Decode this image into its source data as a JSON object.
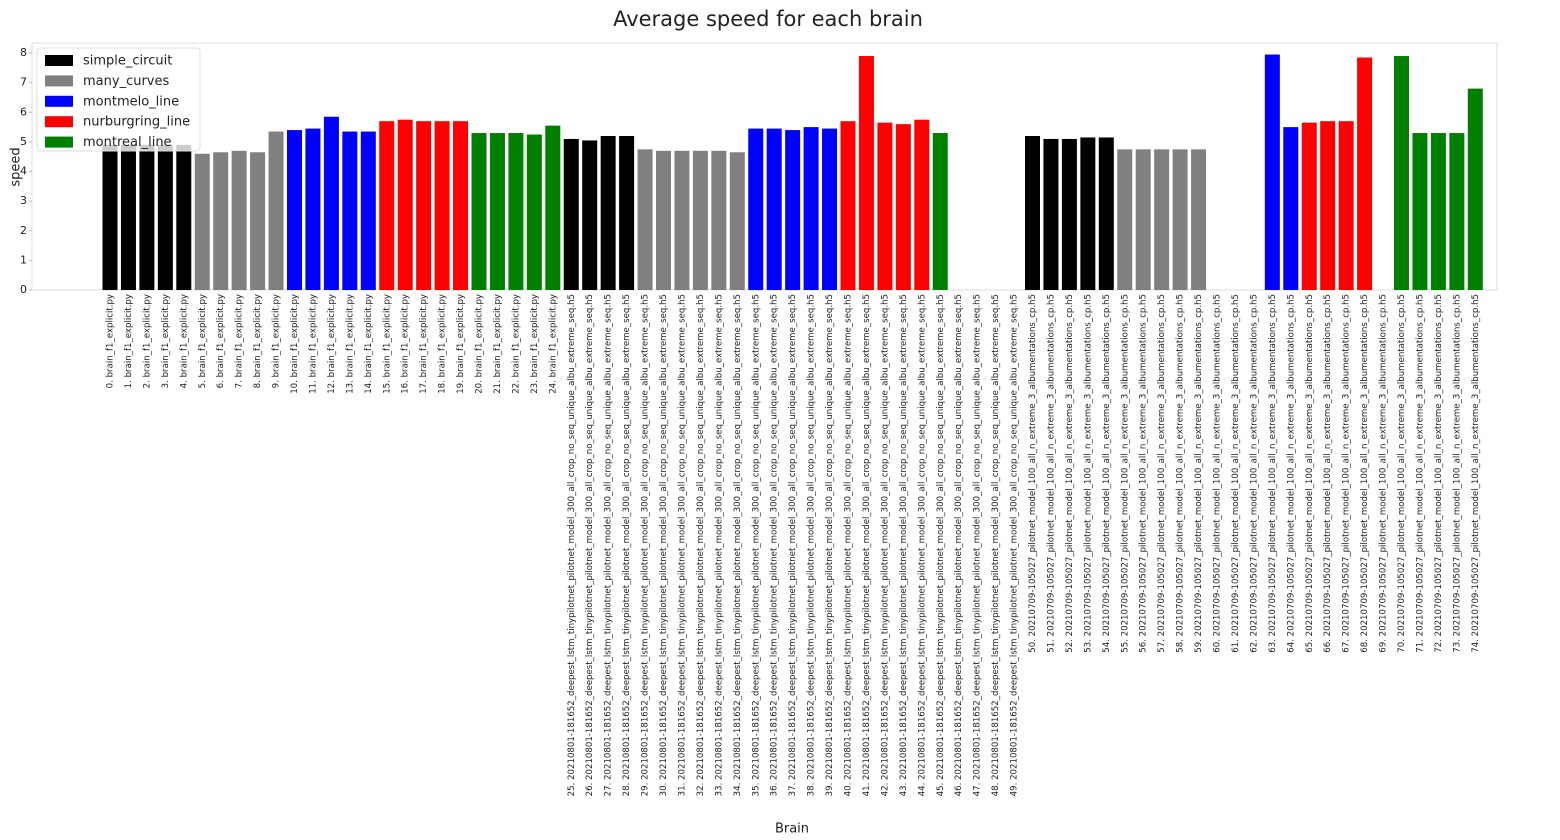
{
  "chart_data": {
    "type": "bar",
    "title": "Average speed for each brain",
    "xlabel": "Brain",
    "ylabel": "speed",
    "ylim": [
      0,
      8.34
    ],
    "yticks": [
      0,
      1,
      2,
      3,
      4,
      5,
      6,
      7,
      8
    ],
    "grid": false,
    "legend": "upper left",
    "categories": [
      "0. brain_f1_explicit.py",
      "1. brain_f1_explicit.py",
      "2. brain_f1_explicit.py",
      "3. brain_f1_explicit.py",
      "4. brain_f1_explicit.py",
      "5. brain_f1_explicit.py",
      "6. brain_f1_explicit.py",
      "7. brain_f1_explicit.py",
      "8. brain_f1_explicit.py",
      "9. brain_f1_explicit.py",
      "10. brain_f1_explicit.py",
      "11. brain_f1_explicit.py",
      "12. brain_f1_explicit.py",
      "13. brain_f1_explicit.py",
      "14. brain_f1_explicit.py",
      "15. brain_f1_explicit.py",
      "16. brain_f1_explicit.py",
      "17. brain_f1_explicit.py",
      "18. brain_f1_explicit.py",
      "19. brain_f1_explicit.py",
      "20. brain_f1_explicit.py",
      "21. brain_f1_explicit.py",
      "22. brain_f1_explicit.py",
      "23. brain_f1_explicit.py",
      "24. brain_f1_explicit.py",
      "25. 20210801-181652_deepest_lstm_tinypilotnet_pilotnet_model_300_all_crop_no_seq_unique_albu_extreme_seq.h5",
      "26. 20210801-181652_deepest_lstm_tinypilotnet_pilotnet_model_300_all_crop_no_seq_unique_albu_extreme_seq.h5",
      "27. 20210801-181652_deepest_lstm_tinypilotnet_pilotnet_model_300_all_crop_no_seq_unique_albu_extreme_seq.h5",
      "28. 20210801-181652_deepest_lstm_tinypilotnet_pilotnet_model_300_all_crop_no_seq_unique_albu_extreme_seq.h5",
      "29. 20210801-181652_deepest_lstm_tinypilotnet_pilotnet_model_300_all_crop_no_seq_unique_albu_extreme_seq.h5",
      "30. 20210801-181652_deepest_lstm_tinypilotnet_pilotnet_model_300_all_crop_no_seq_unique_albu_extreme_seq.h5",
      "31. 20210801-181652_deepest_lstm_tinypilotnet_pilotnet_model_300_all_crop_no_seq_unique_albu_extreme_seq.h5",
      "32. 20210801-181652_deepest_lstm_tinypilotnet_pilotnet_model_300_all_crop_no_seq_unique_albu_extreme_seq.h5",
      "33. 20210801-181652_deepest_lstm_tinypilotnet_pilotnet_model_300_all_crop_no_seq_unique_albu_extreme_seq.h5",
      "34. 20210801-181652_deepest_lstm_tinypilotnet_pilotnet_model_300_all_crop_no_seq_unique_albu_extreme_seq.h5",
      "35. 20210801-181652_deepest_lstm_tinypilotnet_pilotnet_model_300_all_crop_no_seq_unique_albu_extreme_seq.h5",
      "36. 20210801-181652_deepest_lstm_tinypilotnet_pilotnet_model_300_all_crop_no_seq_unique_albu_extreme_seq.h5",
      "37. 20210801-181652_deepest_lstm_tinypilotnet_pilotnet_model_300_all_crop_no_seq_unique_albu_extreme_seq.h5",
      "38. 20210801-181652_deepest_lstm_tinypilotnet_pilotnet_model_300_all_crop_no_seq_unique_albu_extreme_seq.h5",
      "39. 20210801-181652_deepest_lstm_tinypilotnet_pilotnet_model_300_all_crop_no_seq_unique_albu_extreme_seq.h5",
      "40. 20210801-181652_deepest_lstm_tinypilotnet_pilotnet_model_300_all_crop_no_seq_unique_albu_extreme_seq.h5",
      "41. 20210801-181652_deepest_lstm_tinypilotnet_pilotnet_model_300_all_crop_no_seq_unique_albu_extreme_seq.h5",
      "42. 20210801-181652_deepest_lstm_tinypilotnet_pilotnet_model_300_all_crop_no_seq_unique_albu_extreme_seq.h5",
      "43. 20210801-181652_deepest_lstm_tinypilotnet_pilotnet_model_300_all_crop_no_seq_unique_albu_extreme_seq.h5",
      "44. 20210801-181652_deepest_lstm_tinypilotnet_pilotnet_model_300_all_crop_no_seq_unique_albu_extreme_seq.h5",
      "45. 20210801-181652_deepest_lstm_tinypilotnet_pilotnet_model_300_all_crop_no_seq_unique_albu_extreme_seq.h5",
      "46. 20210801-181652_deepest_lstm_tinypilotnet_pilotnet_model_300_all_crop_no_seq_unique_albu_extreme_seq.h5",
      "47. 20210801-181652_deepest_lstm_tinypilotnet_pilotnet_model_300_all_crop_no_seq_unique_albu_extreme_seq.h5",
      "48. 20210801-181652_deepest_lstm_tinypilotnet_pilotnet_model_300_all_crop_no_seq_unique_albu_extreme_seq.h5",
      "49. 20210801-181652_deepest_lstm_tinypilotnet_pilotnet_model_300_all_crop_no_seq_unique_albu_extreme_seq.h5",
      "50. 20210709-105027_pilotnet_model_100_all_n_extreme_3_albumentations_cp.h5",
      "51. 20210709-105027_pilotnet_model_100_all_n_extreme_3_albumentations_cp.h5",
      "52. 20210709-105027_pilotnet_model_100_all_n_extreme_3_albumentations_cp.h5",
      "53. 20210709-105027_pilotnet_model_100_all_n_extreme_3_albumentations_cp.h5",
      "54. 20210709-105027_pilotnet_model_100_all_n_extreme_3_albumentations_cp.h5",
      "55. 20210709-105027_pilotnet_model_100_all_n_extreme_3_albumentations_cp.h5",
      "56. 20210709-105027_pilotnet_model_100_all_n_extreme_3_albumentations_cp.h5",
      "57. 20210709-105027_pilotnet_model_100_all_n_extreme_3_albumentations_cp.h5",
      "58. 20210709-105027_pilotnet_model_100_all_n_extreme_3_albumentations_cp.h5",
      "59. 20210709-105027_pilotnet_model_100_all_n_extreme_3_albumentations_cp.h5",
      "60. 20210709-105027_pilotnet_model_100_all_n_extreme_3_albumentations_cp.h5",
      "61. 20210709-105027_pilotnet_model_100_all_n_extreme_3_albumentations_cp.h5",
      "62. 20210709-105027_pilotnet_model_100_all_n_extreme_3_albumentations_cp.h5",
      "63. 20210709-105027_pilotnet_model_100_all_n_extreme_3_albumentations_cp.h5",
      "64. 20210709-105027_pilotnet_model_100_all_n_extreme_3_albumentations_cp.h5",
      "65. 20210709-105027_pilotnet_model_100_all_n_extreme_3_albumentations_cp.h5",
      "66. 20210709-105027_pilotnet_model_100_all_n_extreme_3_albumentations_cp.h5",
      "67. 20210709-105027_pilotnet_model_100_all_n_extreme_3_albumentations_cp.h5",
      "68. 20210709-105027_pilotnet_model_100_all_n_extreme_3_albumentations_cp.h5",
      "69. 20210709-105027_pilotnet_model_100_all_n_extreme_3_albumentations_cp.h5",
      "70. 20210709-105027_pilotnet_model_100_all_n_extreme_3_albumentations_cp.h5",
      "71. 20210709-105027_pilotnet_model_100_all_n_extreme_3_albumentations_cp.h5",
      "72. 20210709-105027_pilotnet_model_100_all_n_extreme_3_albumentations_cp.h5",
      "73. 20210709-105027_pilotnet_model_100_all_n_extreme_3_albumentations_cp.h5",
      "74. 20210709-105027_pilotnet_model_100_all_n_extreme_3_albumentations_cp.h5"
    ],
    "series": [
      {
        "name": "simple_circuit",
        "color": "#000000",
        "values": [
          4.9,
          4.9,
          4.9,
          4.9,
          4.9,
          null,
          null,
          null,
          null,
          null,
          null,
          null,
          null,
          null,
          null,
          null,
          null,
          null,
          null,
          null,
          null,
          null,
          null,
          null,
          null,
          5.1,
          5.05,
          5.2,
          5.2,
          null,
          null,
          null,
          null,
          null,
          null,
          null,
          null,
          null,
          null,
          null,
          null,
          null,
          null,
          null,
          null,
          null,
          null,
          null,
          null,
          null,
          5.2,
          5.1,
          5.1,
          5.15,
          5.15,
          null,
          null,
          null,
          null,
          null,
          null,
          null,
          null,
          null,
          null,
          null,
          null,
          null,
          null,
          null,
          null,
          null,
          null,
          null,
          null
        ]
      },
      {
        "name": "many_curves",
        "color": "#808080",
        "values": [
          null,
          null,
          null,
          null,
          null,
          4.6,
          4.65,
          4.7,
          4.65,
          5.35,
          null,
          null,
          null,
          null,
          null,
          null,
          null,
          null,
          null,
          null,
          null,
          null,
          null,
          null,
          null,
          null,
          null,
          null,
          null,
          4.75,
          4.7,
          4.7,
          4.7,
          4.7,
          4.65,
          null,
          null,
          null,
          null,
          null,
          null,
          null,
          null,
          null,
          null,
          null,
          null,
          null,
          null,
          null,
          null,
          null,
          null,
          null,
          null,
          4.75,
          4.75,
          4.75,
          4.75,
          4.75,
          null,
          null,
          null,
          null,
          null,
          null,
          null,
          null,
          null,
          null,
          null,
          null,
          null,
          null,
          null
        ]
      },
      {
        "name": "montmelo_line",
        "color": "#0000ff",
        "values": [
          null,
          null,
          null,
          null,
          null,
          null,
          null,
          null,
          null,
          null,
          5.4,
          5.45,
          5.85,
          5.35,
          5.35,
          null,
          null,
          null,
          null,
          null,
          null,
          null,
          null,
          null,
          null,
          null,
          null,
          null,
          null,
          null,
          null,
          null,
          null,
          null,
          null,
          5.45,
          5.45,
          5.4,
          5.5,
          5.45,
          null,
          null,
          null,
          null,
          null,
          null,
          null,
          null,
          null,
          null,
          null,
          null,
          null,
          null,
          null,
          null,
          null,
          null,
          null,
          null,
          null,
          null,
          null,
          7.95,
          5.5,
          null,
          null,
          null,
          null,
          null,
          null,
          null,
          null,
          null,
          null
        ]
      },
      {
        "name": "nurburgring_line",
        "color": "#ff0000",
        "values": [
          null,
          null,
          null,
          null,
          null,
          null,
          null,
          null,
          null,
          null,
          null,
          null,
          null,
          null,
          null,
          5.7,
          5.75,
          5.7,
          5.7,
          5.7,
          null,
          null,
          null,
          null,
          null,
          null,
          null,
          null,
          null,
          null,
          null,
          null,
          null,
          null,
          null,
          null,
          null,
          null,
          null,
          null,
          5.7,
          7.9,
          5.65,
          5.6,
          5.75,
          null,
          null,
          null,
          null,
          null,
          null,
          null,
          null,
          null,
          null,
          null,
          null,
          null,
          null,
          null,
          null,
          null,
          null,
          null,
          null,
          5.65,
          5.7,
          5.7,
          7.85,
          null,
          null,
          null,
          null,
          null,
          null
        ]
      },
      {
        "name": "montreal_line",
        "color": "#008000",
        "values": [
          null,
          null,
          null,
          null,
          null,
          null,
          null,
          null,
          null,
          null,
          null,
          null,
          null,
          null,
          null,
          null,
          null,
          null,
          null,
          null,
          5.3,
          5.3,
          5.3,
          5.25,
          5.55,
          null,
          null,
          null,
          null,
          null,
          null,
          null,
          null,
          null,
          null,
          null,
          null,
          null,
          null,
          null,
          null,
          null,
          null,
          null,
          null,
          5.3,
          null,
          null,
          null,
          null,
          null,
          null,
          null,
          null,
          null,
          null,
          null,
          null,
          null,
          null,
          null,
          null,
          null,
          null,
          null,
          null,
          null,
          null,
          null,
          null,
          7.9,
          5.3,
          5.3,
          5.3,
          6.8
        ]
      }
    ]
  }
}
